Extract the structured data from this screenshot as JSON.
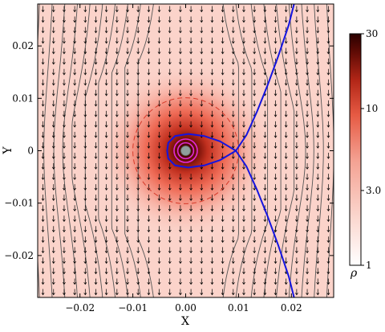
{
  "chart_data": {
    "type": "heatmap",
    "title": "",
    "xlabel": "X",
    "ylabel": "Y",
    "xlim": [
      -0.028,
      0.028
    ],
    "ylim": [
      -0.028,
      0.028
    ],
    "xticks": [
      {
        "value": -0.02,
        "label": "−0.02"
      },
      {
        "value": -0.01,
        "label": "−0.01"
      },
      {
        "value": 0.0,
        "label": "0.00"
      },
      {
        "value": 0.01,
        "label": "0.01"
      },
      {
        "value": 0.02,
        "label": "0.02"
      }
    ],
    "yticks": [
      {
        "value": -0.02,
        "label": "−0.02"
      },
      {
        "value": -0.01,
        "label": "−0.01"
      },
      {
        "value": 0.0,
        "label": "0"
      },
      {
        "value": 0.01,
        "label": "0.01"
      },
      {
        "value": 0.02,
        "label": "0.02"
      }
    ],
    "colorbar": {
      "label": "ρ",
      "scale": "log",
      "range": [
        1,
        30
      ],
      "ticks": [
        {
          "value": 1,
          "label": "1"
        },
        {
          "value": 3,
          "label": "3.0"
        },
        {
          "value": 10,
          "label": "10"
        },
        {
          "value": 30,
          "label": "30"
        }
      ],
      "colormap": [
        "#ffffff",
        "#f7c9c0",
        "#f28a78",
        "#e1442f",
        "#a61f12",
        "#5a0a05",
        "#2a0000"
      ]
    },
    "density_field": {
      "background": 1.25,
      "peak": 30,
      "center": [
        0.0,
        0.0
      ],
      "core_radius": 0.0035
    },
    "hill_sphere_radius": 0.01,
    "inner_circles": [
      {
        "radius": 0.0015,
        "color": "#e02ad6"
      },
      {
        "radius": 0.0022,
        "color": "#e02ad6"
      }
    ],
    "separatrix": {
      "color": "#1414e0",
      "saddle_point": [
        0.0095,
        0.0
      ],
      "lobe": [
        [
          0.0095,
          0.0
        ],
        [
          0.0065,
          -0.0018
        ],
        [
          0.0035,
          -0.0028
        ],
        [
          0.0005,
          -0.0032
        ],
        [
          -0.002,
          -0.0028
        ],
        [
          -0.0033,
          -0.0015
        ],
        [
          -0.0035,
          0.0
        ],
        [
          -0.0033,
          0.0015
        ],
        [
          -0.002,
          0.0028
        ],
        [
          0.0005,
          0.0032
        ],
        [
          0.0035,
          0.0028
        ],
        [
          0.0065,
          0.0018
        ],
        [
          0.0095,
          0.0
        ]
      ],
      "upper_branch": [
        [
          0.0095,
          0.0
        ],
        [
          0.0115,
          0.003
        ],
        [
          0.0135,
          0.0075
        ],
        [
          0.0155,
          0.0125
        ],
        [
          0.0175,
          0.018
        ],
        [
          0.0195,
          0.024
        ],
        [
          0.0205,
          0.028
        ]
      ],
      "lower_branch": [
        [
          0.0095,
          0.0
        ],
        [
          0.0115,
          -0.003
        ],
        [
          0.0135,
          -0.0075
        ],
        [
          0.0155,
          -0.0125
        ],
        [
          0.0175,
          -0.018
        ],
        [
          0.0195,
          -0.024
        ],
        [
          0.0205,
          -0.028
        ]
      ]
    },
    "streamlines": {
      "color": "#555555",
      "x_positions": [
        -0.0265,
        -0.024,
        -0.0215,
        -0.019,
        -0.0165,
        -0.014,
        -0.0115,
        -0.009,
        -0.0065,
        -0.004,
        0.005,
        0.0075,
        0.0105,
        0.013,
        0.0155,
        0.018,
        0.0205,
        0.023,
        0.0255,
        0.0275
      ]
    },
    "velocity_arrows": {
      "direction": "down",
      "spacing": 0.002
    }
  }
}
